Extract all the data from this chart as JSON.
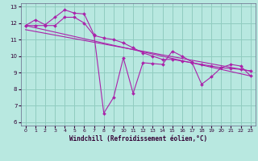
{
  "background_color": "#b8e8e0",
  "grid_color": "#90ccc0",
  "line_color": "#aa22aa",
  "marker_color": "#aa22aa",
  "xlabel": "Windchill (Refroidissement éolien,°C)",
  "xlim": [
    -0.5,
    23.5
  ],
  "ylim": [
    5.8,
    13.2
  ],
  "yticks": [
    6,
    7,
    8,
    9,
    10,
    11,
    12,
    13
  ],
  "xticks": [
    0,
    1,
    2,
    3,
    4,
    5,
    6,
    7,
    8,
    9,
    10,
    11,
    12,
    13,
    14,
    15,
    16,
    17,
    18,
    19,
    20,
    21,
    22,
    23
  ],
  "series": [
    {
      "x": [
        0,
        1,
        2,
        3,
        4,
        5,
        6,
        7,
        8,
        9,
        10,
        11,
        12,
        13,
        14,
        15,
        16,
        17,
        18,
        19,
        20,
        21,
        22,
        23
      ],
      "y": [
        11.85,
        12.2,
        11.9,
        12.35,
        12.8,
        12.6,
        12.55,
        11.3,
        6.55,
        7.5,
        9.9,
        7.75,
        9.6,
        9.55,
        9.5,
        10.3,
        10.0,
        9.65,
        8.3,
        8.75,
        9.3,
        9.5,
        9.4,
        8.8
      ],
      "has_markers": true
    },
    {
      "x": [
        0,
        1,
        2,
        3,
        4,
        5,
        6,
        7,
        8,
        9,
        10,
        11,
        12,
        13,
        14,
        15,
        16,
        17,
        18,
        19,
        20,
        21,
        22,
        23
      ],
      "y": [
        11.85,
        11.85,
        11.85,
        11.85,
        12.35,
        12.35,
        12.0,
        11.25,
        11.1,
        11.0,
        10.8,
        10.5,
        10.2,
        10.0,
        9.8,
        9.8,
        9.7,
        9.6,
        9.5,
        9.4,
        9.3,
        9.25,
        9.2,
        9.1
      ],
      "has_markers": true
    },
    {
      "x": [
        0,
        23
      ],
      "y": [
        11.85,
        8.8
      ],
      "has_markers": false
    },
    {
      "x": [
        0,
        23
      ],
      "y": [
        11.6,
        9.1
      ],
      "has_markers": false
    }
  ]
}
